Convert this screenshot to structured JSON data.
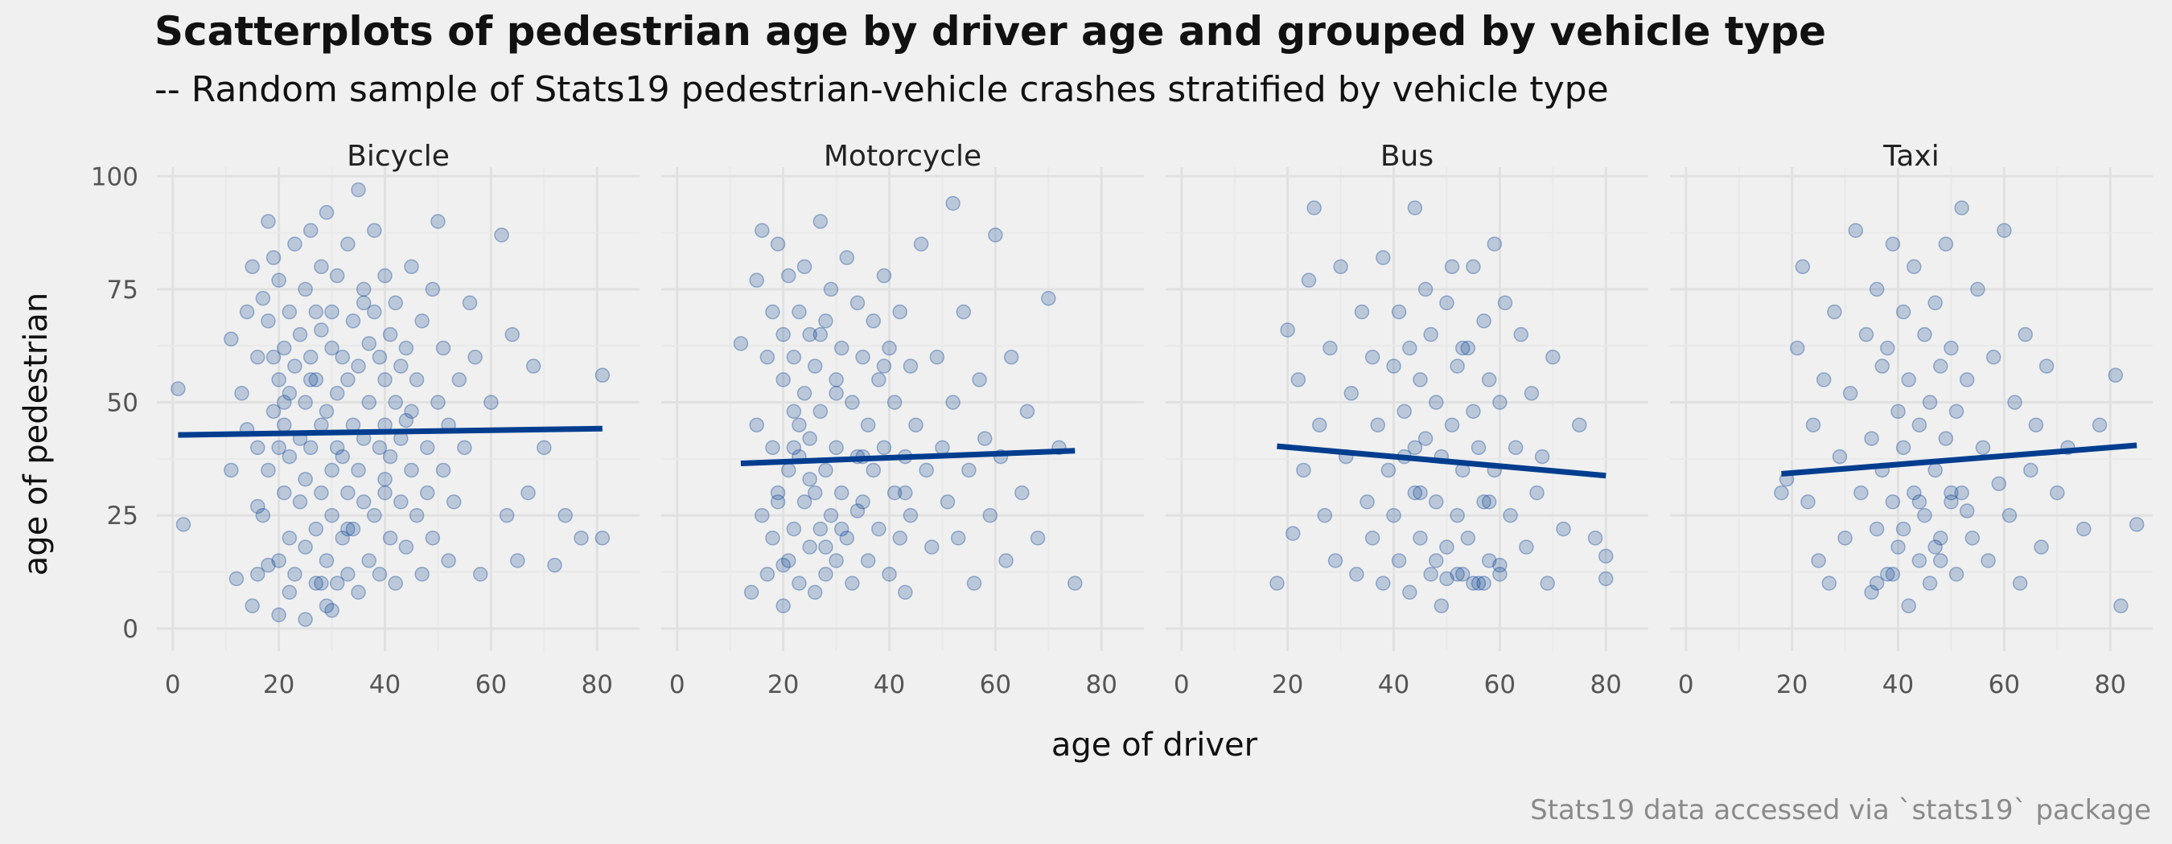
{
  "title": "Scatterplots of pedestrian age by driver age and grouped by vehicle type",
  "subtitle": "-- Random sample of Stats19 pedestrian-vehicle crashes stratified by vehicle type",
  "caption": "Stats19 data accessed via `stats19` package",
  "colors": {
    "point": "#003d8f",
    "trend": "#003d8f",
    "background": "#f0f0f0"
  },
  "chart_data": {
    "type": "scatter",
    "xlabel": "age of driver",
    "ylabel": "age of pedestrian",
    "xlim": [
      -3,
      88
    ],
    "ylim": [
      -5,
      102
    ],
    "x_ticks": [
      0,
      20,
      40,
      60,
      80
    ],
    "y_ticks": [
      0,
      25,
      50,
      75,
      100
    ],
    "grid": true,
    "facets": [
      {
        "name": "Bicycle",
        "trend": {
          "x": [
            1,
            81
          ],
          "y": [
            42.8,
            44.2
          ]
        },
        "x": [
          1,
          2,
          11,
          11,
          12,
          13,
          14,
          14,
          15,
          15,
          16,
          16,
          16,
          17,
          17,
          18,
          18,
          18,
          19,
          19,
          19,
          20,
          20,
          20,
          20,
          21,
          21,
          21,
          21,
          22,
          22,
          22,
          22,
          23,
          23,
          23,
          24,
          24,
          24,
          25,
          25,
          25,
          25,
          25,
          26,
          26,
          26,
          27,
          27,
          27,
          27,
          28,
          28,
          28,
          28,
          29,
          29,
          29,
          29,
          30,
          30,
          30,
          30,
          31,
          31,
          31,
          31,
          32,
          32,
          32,
          33,
          33,
          33,
          33,
          34,
          34,
          34,
          35,
          35,
          35,
          35,
          36,
          36,
          36,
          37,
          37,
          37,
          38,
          38,
          38,
          39,
          39,
          39,
          40,
          40,
          40,
          40,
          41,
          41,
          41,
          42,
          42,
          42,
          43,
          43,
          43,
          44,
          44,
          45,
          45,
          45,
          46,
          46,
          47,
          47,
          48,
          48,
          49,
          49,
          50,
          50,
          51,
          51,
          52,
          52,
          53,
          54,
          55,
          56,
          57,
          58,
          60,
          62,
          63,
          64,
          65,
          67,
          68,
          70,
          72,
          74,
          77,
          81,
          81,
          16,
          22,
          28,
          36,
          44,
          30,
          20,
          33,
          40,
          26,
          18
        ],
        "y": [
          53,
          23,
          35,
          64,
          11,
          52,
          70,
          44,
          80,
          5,
          60,
          12,
          40,
          73,
          25,
          90,
          68,
          35,
          48,
          82,
          60,
          15,
          55,
          3,
          77,
          62,
          30,
          45,
          50,
          8,
          70,
          38,
          20,
          58,
          85,
          12,
          42,
          65,
          28,
          50,
          2,
          75,
          33,
          18,
          60,
          40,
          88,
          22,
          55,
          70,
          10,
          45,
          66,
          30,
          80,
          5,
          48,
          15,
          92,
          35,
          62,
          25,
          70,
          10,
          52,
          40,
          78,
          20,
          60,
          38,
          85,
          30,
          12,
          55,
          45,
          68,
          22,
          97,
          35,
          58,
          8,
          75,
          42,
          28,
          63,
          15,
          50,
          70,
          25,
          88,
          40,
          60,
          12,
          30,
          55,
          78,
          45,
          20,
          65,
          38,
          10,
          50,
          72,
          28,
          58,
          42,
          62,
          18,
          35,
          80,
          48,
          25,
          55,
          12,
          68,
          40,
          30,
          75,
          20,
          90,
          50,
          62,
          35,
          45,
          15,
          28,
          55,
          40,
          72,
          60,
          12,
          50,
          87,
          25,
          65,
          15,
          30,
          58,
          40,
          14,
          25,
          20,
          56,
          20,
          27,
          52,
          10,
          72,
          46,
          4,
          40,
          22,
          33,
          55,
          14
        ]
      },
      {
        "name": "Motorcycle",
        "trend": {
          "x": [
            12,
            75
          ],
          "y": [
            36.5,
            39.3
          ]
        },
        "x": [
          12,
          14,
          15,
          15,
          16,
          16,
          17,
          17,
          18,
          18,
          18,
          19,
          19,
          20,
          20,
          20,
          21,
          21,
          21,
          22,
          22,
          22,
          23,
          23,
          23,
          24,
          24,
          24,
          25,
          25,
          25,
          26,
          26,
          26,
          27,
          27,
          27,
          28,
          28,
          28,
          29,
          29,
          30,
          30,
          30,
          31,
          31,
          32,
          32,
          33,
          33,
          34,
          34,
          35,
          35,
          36,
          36,
          37,
          37,
          38,
          38,
          39,
          39,
          40,
          40,
          41,
          41,
          42,
          42,
          43,
          43,
          44,
          44,
          45,
          46,
          47,
          48,
          49,
          50,
          51,
          52,
          52,
          53,
          54,
          55,
          56,
          57,
          58,
          59,
          60,
          61,
          62,
          63,
          65,
          66,
          68,
          70,
          72,
          75,
          19,
          23,
          27,
          31,
          35,
          39,
          43,
          20,
          25,
          30,
          34,
          22,
          28
        ],
        "y": [
          63,
          8,
          77,
          45,
          25,
          88,
          60,
          12,
          40,
          70,
          20,
          85,
          30,
          55,
          5,
          65,
          35,
          15,
          78,
          48,
          22,
          60,
          10,
          70,
          38,
          28,
          52,
          80,
          18,
          42,
          65,
          8,
          30,
          58,
          90,
          22,
          48,
          12,
          68,
          35,
          75,
          25,
          55,
          15,
          40,
          62,
          30,
          82,
          20,
          50,
          10,
          72,
          38,
          60,
          28,
          45,
          15,
          68,
          35,
          22,
          55,
          78,
          40,
          12,
          62,
          30,
          50,
          20,
          70,
          38,
          8,
          58,
          25,
          45,
          85,
          35,
          18,
          60,
          40,
          28,
          94,
          50,
          20,
          70,
          35,
          10,
          55,
          42,
          25,
          87,
          38,
          15,
          60,
          30,
          48,
          20,
          73,
          40,
          10,
          28,
          45,
          65,
          22,
          38,
          58,
          30,
          14,
          33,
          52,
          26,
          40,
          18
        ]
      },
      {
        "name": "Bus",
        "trend": {
          "x": [
            18,
            80
          ],
          "y": [
            40.3,
            33.8
          ]
        },
        "x": [
          18,
          20,
          21,
          22,
          23,
          24,
          25,
          26,
          27,
          28,
          29,
          30,
          31,
          32,
          33,
          34,
          35,
          36,
          36,
          37,
          38,
          38,
          39,
          40,
          40,
          41,
          41,
          42,
          42,
          43,
          43,
          44,
          44,
          45,
          45,
          46,
          46,
          47,
          47,
          48,
          48,
          49,
          49,
          50,
          50,
          51,
          51,
          52,
          52,
          53,
          53,
          54,
          54,
          55,
          55,
          56,
          56,
          57,
          57,
          58,
          58,
          59,
          59,
          60,
          60,
          61,
          62,
          63,
          64,
          65,
          66,
          67,
          68,
          69,
          70,
          72,
          75,
          78,
          80,
          80,
          50,
          52,
          55,
          45,
          48,
          57,
          60,
          44,
          53,
          58
        ],
        "y": [
          10,
          66,
          21,
          55,
          35,
          77,
          93,
          45,
          25,
          62,
          15,
          80,
          38,
          52,
          12,
          70,
          28,
          60,
          20,
          45,
          82,
          10,
          35,
          58,
          25,
          70,
          15,
          48,
          38,
          62,
          8,
          30,
          93,
          55,
          20,
          75,
          42,
          12,
          65,
          28,
          50,
          5,
          38,
          72,
          18,
          45,
          80,
          25,
          58,
          12,
          35,
          62,
          20,
          48,
          80,
          10,
          40,
          68,
          28,
          55,
          15,
          85,
          35,
          12,
          50,
          72,
          25,
          40,
          65,
          18,
          52,
          30,
          38,
          10,
          60,
          22,
          45,
          20,
          16,
          11,
          11,
          12,
          10,
          30,
          15,
          10,
          14,
          40,
          62,
          28
        ]
      },
      {
        "name": "Taxi",
        "trend": {
          "x": [
            18,
            85
          ],
          "y": [
            34.2,
            40.5
          ]
        },
        "x": [
          18,
          19,
          21,
          22,
          23,
          24,
          25,
          26,
          27,
          28,
          29,
          30,
          31,
          32,
          33,
          34,
          35,
          35,
          36,
          36,
          37,
          37,
          38,
          38,
          39,
          39,
          40,
          40,
          41,
          41,
          42,
          42,
          43,
          43,
          44,
          44,
          45,
          45,
          46,
          46,
          47,
          47,
          48,
          48,
          49,
          49,
          50,
          50,
          51,
          51,
          52,
          52,
          53,
          54,
          55,
          56,
          57,
          58,
          59,
          60,
          61,
          62,
          63,
          64,
          65,
          66,
          67,
          68,
          70,
          72,
          75,
          78,
          81,
          82,
          85,
          44,
          47,
          50,
          41,
          39,
          53,
          48,
          36
        ],
        "y": [
          30,
          33,
          62,
          80,
          28,
          45,
          15,
          55,
          10,
          70,
          38,
          20,
          52,
          88,
          30,
          65,
          8,
          42,
          75,
          22,
          58,
          35,
          12,
          62,
          85,
          28,
          48,
          18,
          70,
          40,
          5,
          55,
          30,
          80,
          15,
          45,
          65,
          25,
          50,
          10,
          72,
          35,
          58,
          20,
          42,
          85,
          28,
          62,
          12,
          48,
          93,
          30,
          55,
          20,
          75,
          40,
          15,
          60,
          32,
          88,
          25,
          50,
          10,
          65,
          35,
          45,
          18,
          58,
          30,
          40,
          22,
          45,
          56,
          5,
          23,
          28,
          18,
          30,
          22,
          12,
          26,
          15,
          10
        ]
      }
    ]
  }
}
